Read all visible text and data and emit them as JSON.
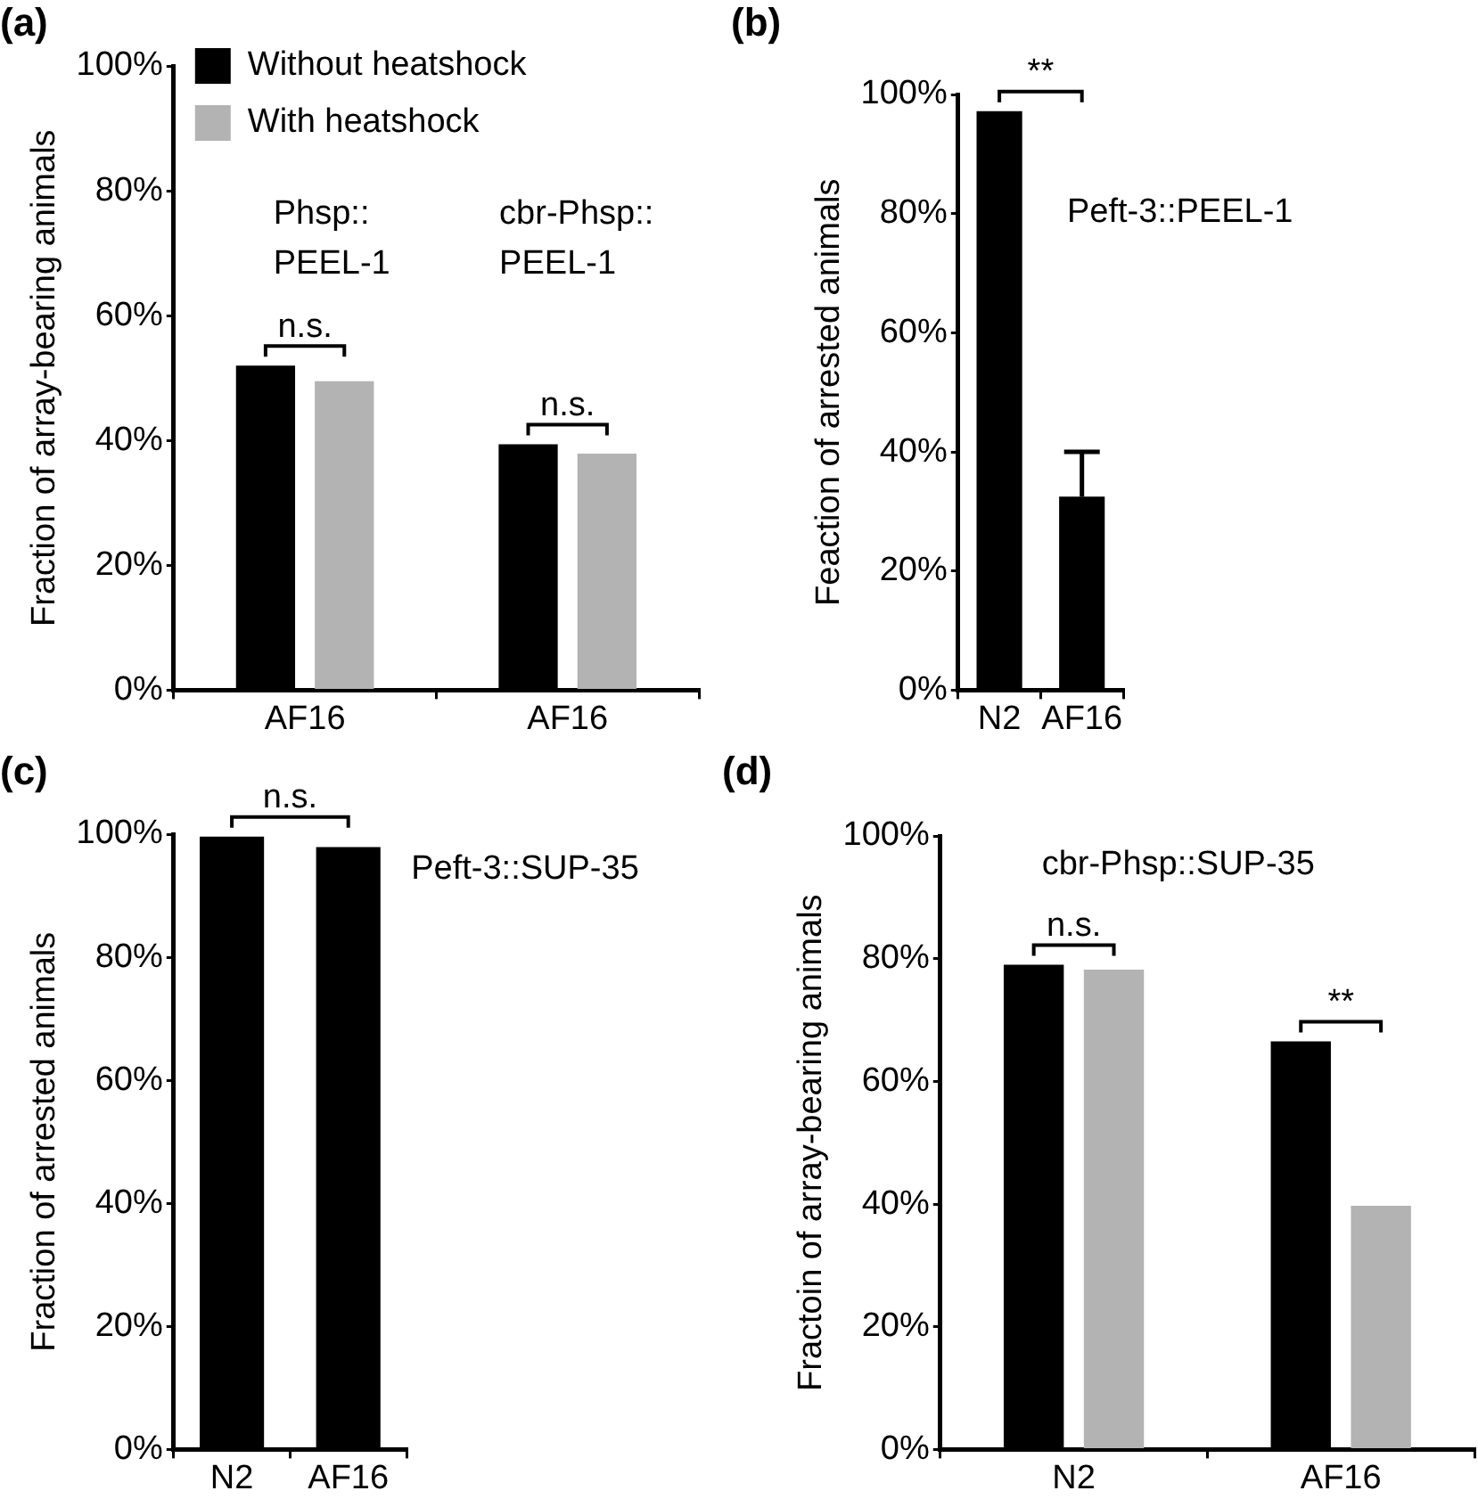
{
  "chart_data": [
    {
      "type": "bar",
      "title": "(a)",
      "ylabel": "Fraction of array-bearing animals",
      "categories": [
        "AF16",
        "AF16"
      ],
      "series": [
        {
          "name": "Without heatshock",
          "color": "#000000",
          "values": [
            52,
            39.4
          ]
        },
        {
          "name": "With heatshock",
          "color": "#b3b3b3",
          "values": [
            49.5,
            37.9
          ]
        }
      ],
      "ylim": [
        0,
        100
      ],
      "yticks": [
        {
          "value": 0,
          "label": "0%"
        },
        {
          "value": 20,
          "label": "20%"
        },
        {
          "value": 40,
          "label": "40%"
        },
        {
          "value": 60,
          "label": "60%"
        },
        {
          "value": 80,
          "label": "80%"
        },
        {
          "value": 100,
          "label": "100%"
        }
      ],
      "legend": "top left",
      "annotations": [
        "n.s.",
        "n.s.",
        "Phsp:: PEEL-1",
        "cbr-Phsp:: PEEL-1"
      ]
    },
    {
      "type": "bar",
      "title": "(b)",
      "ylabel": "Feaction of arrested animals",
      "categories": [
        "N2",
        "AF16"
      ],
      "values": [
        97.2,
        32.5
      ],
      "color": "#000000",
      "errors": [
        null,
        [
          32.5,
          40
        ]
      ],
      "ylim": [
        0,
        100
      ],
      "yticks": [
        {
          "value": 0,
          "label": "0%"
        },
        {
          "value": 20,
          "label": "20%"
        },
        {
          "value": 40,
          "label": "40%"
        },
        {
          "value": 60,
          "label": "60%"
        },
        {
          "value": 80,
          "label": "80%"
        },
        {
          "value": 100,
          "label": "100%"
        }
      ],
      "annotations": [
        "**",
        "Peft-3::PEEL-1"
      ]
    },
    {
      "type": "bar",
      "title": "(c)",
      "ylabel": "Fraction of arrested animals",
      "categories": [
        "N2",
        "AF16"
      ],
      "values": [
        99.6,
        97.9
      ],
      "color": "#000000",
      "ylim": [
        0,
        100
      ],
      "yticks": [
        {
          "value": 0,
          "label": "0%"
        },
        {
          "value": 20,
          "label": "20%"
        },
        {
          "value": 40,
          "label": "40%"
        },
        {
          "value": 60,
          "label": "60%"
        },
        {
          "value": 80,
          "label": "80%"
        },
        {
          "value": 100,
          "label": "100%"
        }
      ],
      "annotations": [
        "n.s.",
        "Peft-3::SUP-35"
      ]
    },
    {
      "type": "bar",
      "title": "(d)",
      "ylabel": "Fractoin of array-bearing animals",
      "categories": [
        "N2",
        "AF16"
      ],
      "series": [
        {
          "color": "#000000",
          "values": [
            79,
            66.5
          ]
        },
        {
          "color": "#b3b3b3",
          "values": [
            78.2,
            39.7
          ]
        }
      ],
      "ylim": [
        0,
        100
      ],
      "yticks": [
        {
          "value": 0,
          "label": "0%"
        },
        {
          "value": 20,
          "label": "20%"
        },
        {
          "value": 40,
          "label": "40%"
        },
        {
          "value": 60,
          "label": "60%"
        },
        {
          "value": 80,
          "label": "80%"
        },
        {
          "value": 100,
          "label": "100%"
        }
      ],
      "annotations": [
        "cbr-Phsp::SUP-35",
        "n.s.",
        "**"
      ]
    }
  ]
}
